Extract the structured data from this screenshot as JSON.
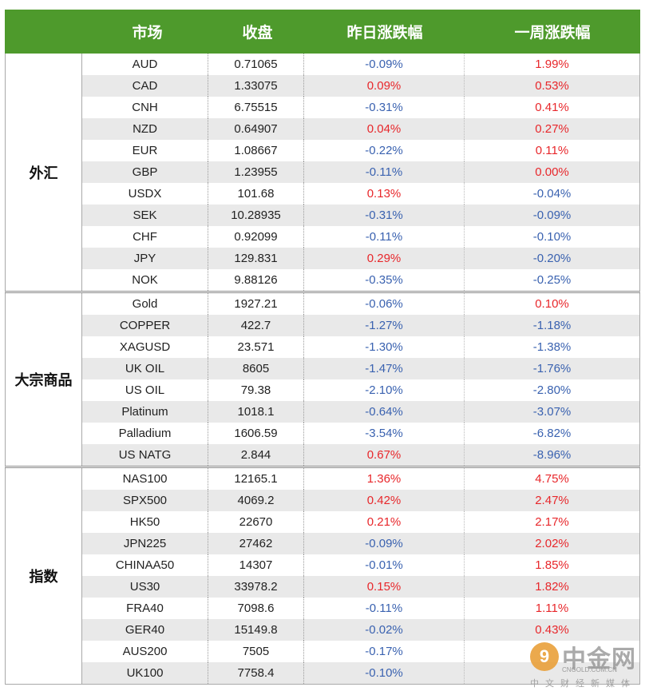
{
  "header": {
    "col1": "市场",
    "col2": "收盘",
    "col3": "昨日涨跌幅",
    "col4": "一周涨跌幅"
  },
  "colors": {
    "header_bg": "#4e9a2c",
    "up": "#e8272b",
    "down": "#3a62b0"
  },
  "groups": [
    {
      "label": "外汇",
      "rows": [
        {
          "market": "AUD",
          "close": "0.71065",
          "day": "-0.09%",
          "week": "1.99%"
        },
        {
          "market": "CAD",
          "close": "1.33075",
          "day": "0.09%",
          "week": "0.53%"
        },
        {
          "market": "CNH",
          "close": "6.75515",
          "day": "-0.31%",
          "week": "0.41%"
        },
        {
          "market": "NZD",
          "close": "0.64907",
          "day": "0.04%",
          "week": "0.27%"
        },
        {
          "market": "EUR",
          "close": "1.08667",
          "day": "-0.22%",
          "week": "0.11%"
        },
        {
          "market": "GBP",
          "close": "1.23955",
          "day": "-0.11%",
          "week": "0.00%"
        },
        {
          "market": "USDX",
          "close": "101.68",
          "day": "0.13%",
          "week": "-0.04%"
        },
        {
          "market": "SEK",
          "close": "10.28935",
          "day": "-0.31%",
          "week": "-0.09%"
        },
        {
          "market": "CHF",
          "close": "0.92099",
          "day": "-0.11%",
          "week": "-0.10%"
        },
        {
          "market": "JPY",
          "close": "129.831",
          "day": "0.29%",
          "week": "-0.20%"
        },
        {
          "market": "NOK",
          "close": "9.88126",
          "day": "-0.35%",
          "week": "-0.25%"
        }
      ]
    },
    {
      "label": "大宗商品",
      "rows": [
        {
          "market": "Gold",
          "close": "1927.21",
          "day": "-0.06%",
          "week": "0.10%"
        },
        {
          "market": "COPPER",
          "close": "422.7",
          "day": "-1.27%",
          "week": "-1.18%"
        },
        {
          "market": "XAGUSD",
          "close": "23.571",
          "day": "-1.30%",
          "week": "-1.38%"
        },
        {
          "market": "UK OIL",
          "close": "8605",
          "day": "-1.47%",
          "week": "-1.76%"
        },
        {
          "market": "US OIL",
          "close": "79.38",
          "day": "-2.10%",
          "week": "-2.80%"
        },
        {
          "market": "Platinum",
          "close": "1018.1",
          "day": "-0.64%",
          "week": "-3.07%"
        },
        {
          "market": "Palladium",
          "close": "1606.59",
          "day": "-3.54%",
          "week": "-6.82%"
        },
        {
          "market": "US NATG",
          "close": "2.844",
          "day": "0.67%",
          "week": "-8.96%"
        }
      ]
    },
    {
      "label": "指数",
      "rows": [
        {
          "market": "NAS100",
          "close": "12165.1",
          "day": "1.36%",
          "week": "4.75%"
        },
        {
          "market": "SPX500",
          "close": "4069.2",
          "day": "0.42%",
          "week": "2.47%"
        },
        {
          "market": "HK50",
          "close": "22670",
          "day": "0.21%",
          "week": "2.17%"
        },
        {
          "market": "JPN225",
          "close": "27462",
          "day": "-0.09%",
          "week": "2.02%"
        },
        {
          "market": "CHINAA50",
          "close": "14307",
          "day": "-0.01%",
          "week": "1.85%"
        },
        {
          "market": "US30",
          "close": "33978.2",
          "day": "0.15%",
          "week": "1.82%"
        },
        {
          "market": "FRA40",
          "close": "7098.6",
          "day": "-0.11%",
          "week": "1.11%"
        },
        {
          "market": "GER40",
          "close": "15149.8",
          "day": "-0.02%",
          "week": "0.43%"
        },
        {
          "market": "AUS200",
          "close": "7505",
          "day": "-0.17%",
          "week": ""
        },
        {
          "market": "UK100",
          "close": "7758.4",
          "day": "-0.10%",
          "week": ""
        }
      ]
    }
  ],
  "watermark": {
    "brand": "中金网",
    "url": "CNGOLD.COM.CN",
    "slogan": "中文财经新媒体",
    "logo_glyph": "9"
  }
}
